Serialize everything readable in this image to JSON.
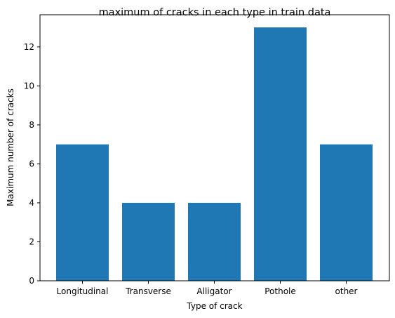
{
  "chart_data": {
    "type": "bar",
    "title": "maximum of cracks in each type in train data",
    "xlabel": "Type of crack",
    "ylabel": "Maximum number of cracks",
    "categories": [
      "Longitudinal",
      "Transverse",
      "Alligator",
      "Pothole",
      "other"
    ],
    "values": [
      7,
      4,
      4,
      13,
      7
    ],
    "yticks": [
      0,
      2,
      4,
      6,
      8,
      10,
      12
    ],
    "ylim": [
      0,
      13.65
    ],
    "bar_color": "#1f77b4",
    "grid": false,
    "legend": "none"
  }
}
